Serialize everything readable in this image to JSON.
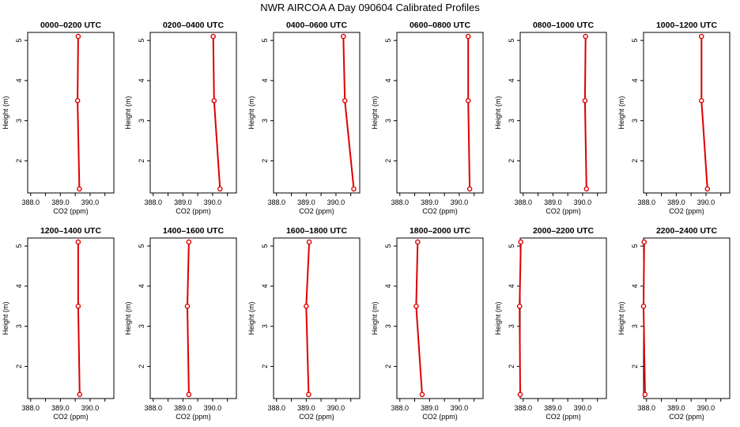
{
  "figure": {
    "title": "NWR AIRCOA A  Day 090604  Calibrated Profiles",
    "xlabel": "CO2 (ppm)",
    "ylabel": "Height (m)",
    "xticks": [
      388.0,
      388.5,
      389.0,
      389.5,
      390.0,
      390.5
    ],
    "xtick_labels": [
      "388.0",
      "",
      "389.0",
      "",
      "390.0",
      ""
    ],
    "yticks": [
      2,
      3,
      4,
      5
    ],
    "xlim": [
      387.9,
      390.8
    ],
    "ylim": [
      1.2,
      5.2
    ],
    "line_color": "#dd0000"
  },
  "chart_data": [
    {
      "type": "line",
      "title": "0000–0200 UTC",
      "x": [
        389.6,
        389.58,
        389.64
      ],
      "y": [
        5.1,
        3.5,
        1.3
      ]
    },
    {
      "type": "line",
      "title": "0200–0400 UTC",
      "x": [
        390.02,
        390.05,
        390.25
      ],
      "y": [
        5.1,
        3.5,
        1.3
      ]
    },
    {
      "type": "line",
      "title": "0400–0600 UTC",
      "x": [
        390.25,
        390.3,
        390.6
      ],
      "y": [
        5.1,
        3.5,
        1.3
      ]
    },
    {
      "type": "line",
      "title": "0600–0800 UTC",
      "x": [
        390.3,
        390.3,
        390.35
      ],
      "y": [
        5.1,
        3.5,
        1.3
      ]
    },
    {
      "type": "line",
      "title": "0800–1000 UTC",
      "x": [
        390.1,
        390.08,
        390.13
      ],
      "y": [
        5.1,
        3.5,
        1.3
      ]
    },
    {
      "type": "line",
      "title": "1000–1200 UTC",
      "x": [
        389.85,
        389.85,
        390.05
      ],
      "y": [
        5.1,
        3.5,
        1.3
      ]
    },
    {
      "type": "line",
      "title": "1200–1400 UTC",
      "x": [
        389.6,
        389.6,
        389.65
      ],
      "y": [
        5.1,
        3.5,
        1.3
      ]
    },
    {
      "type": "line",
      "title": "1400–1600 UTC",
      "x": [
        389.2,
        389.15,
        389.2
      ],
      "y": [
        5.1,
        3.5,
        1.3
      ]
    },
    {
      "type": "line",
      "title": "1600–1800 UTC",
      "x": [
        389.1,
        389.0,
        389.08
      ],
      "y": [
        5.1,
        3.5,
        1.3
      ]
    },
    {
      "type": "line",
      "title": "1800–2000 UTC",
      "x": [
        388.6,
        388.55,
        388.75
      ],
      "y": [
        5.1,
        3.5,
        1.3
      ]
    },
    {
      "type": "line",
      "title": "2000–2200 UTC",
      "x": [
        387.92,
        387.88,
        387.9
      ],
      "y": [
        5.1,
        3.5,
        1.3
      ]
    },
    {
      "type": "line",
      "title": "2200–2400 UTC",
      "x": [
        387.92,
        387.9,
        387.95
      ],
      "y": [
        5.1,
        3.5,
        1.3
      ]
    }
  ]
}
